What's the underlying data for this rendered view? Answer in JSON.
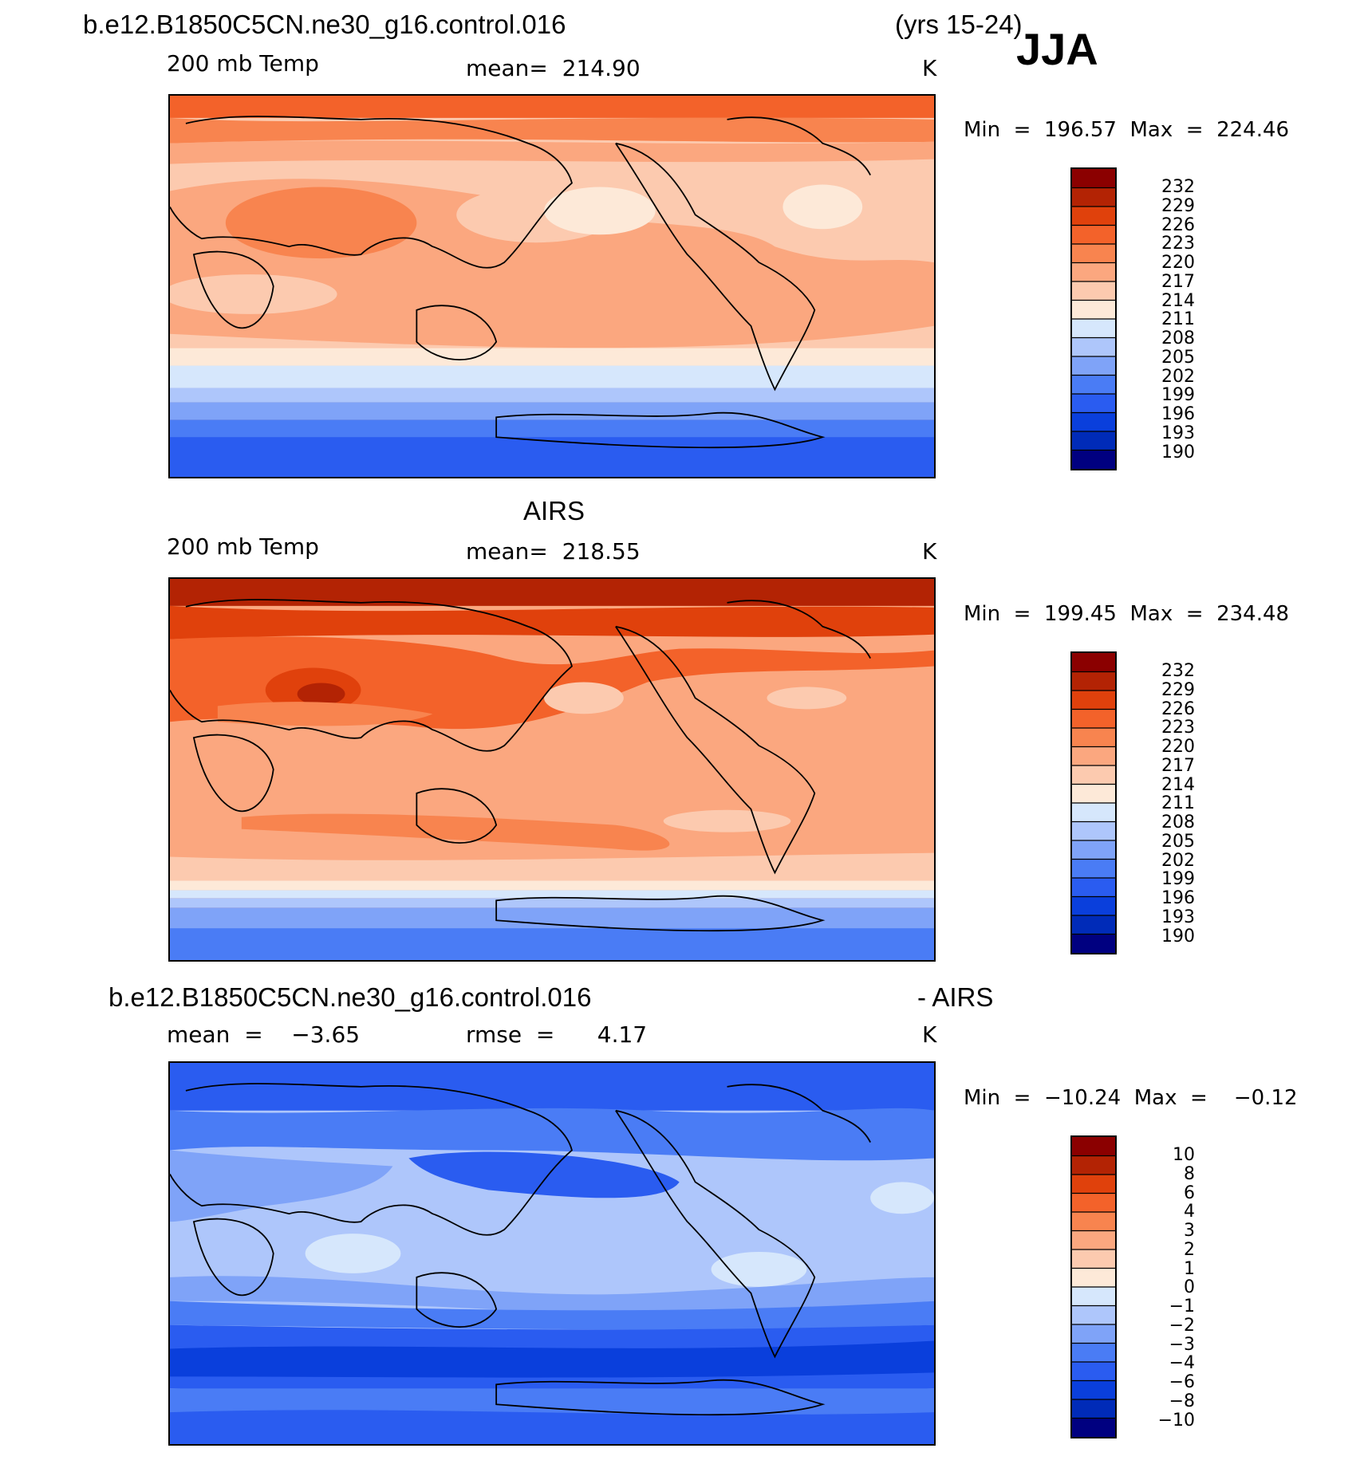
{
  "header": {
    "case_name": "b.e12.B1850C5CN.ne30_g16.control.016",
    "years": "(yrs 15-24)",
    "season": "JJA"
  },
  "colors": {
    "warm_scale": [
      "#000080",
      "#002bb8",
      "#0a3fdc",
      "#2a5cf0",
      "#4a7cf5",
      "#7fa3f8",
      "#aec6fb",
      "#d6e7fc",
      "#fde9d8",
      "#fccaaf",
      "#fba77f",
      "#f8844f",
      "#f3622a",
      "#e0410c",
      "#b32304",
      "#8b0000"
    ]
  },
  "panels": [
    {
      "variable": "200 mb Temp",
      "stat": "mean=  214.90",
      "units": "K",
      "minmax": "Min  =  196.57  Max  =  224.46",
      "colorbar_labels": [
        "232",
        "229",
        "226",
        "223",
        "220",
        "217",
        "214",
        "211",
        "208",
        "205",
        "202",
        "199",
        "196",
        "193",
        "190"
      ]
    },
    {
      "title": "AIRS",
      "variable": "200 mb Temp",
      "stat": "mean=  218.55",
      "units": "K",
      "minmax": "Min  =  199.45  Max  =  234.48",
      "colorbar_labels": [
        "232",
        "229",
        "226",
        "223",
        "220",
        "217",
        "214",
        "211",
        "208",
        "205",
        "202",
        "199",
        "196",
        "193",
        "190"
      ]
    },
    {
      "title": "b.e12.B1850C5CN.ne30_g16.control.016",
      "title_right": "- AIRS",
      "variable": "mean  =    −3.65",
      "stat": "rmse  =      4.17",
      "units": "K",
      "minmax": "Min  =  −10.24  Max  =    −0.12",
      "colorbar_labels": [
        "10",
        "8",
        "6",
        "4",
        "3",
        "2",
        "1",
        "0",
        "−1",
        "−2",
        "−3",
        "−4",
        "−6",
        "−8",
        "−10"
      ]
    }
  ]
}
